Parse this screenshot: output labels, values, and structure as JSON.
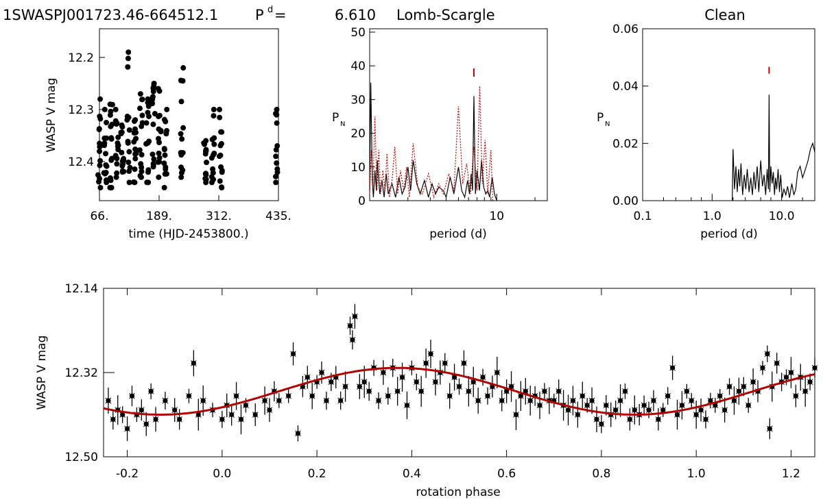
{
  "header": {
    "object": "1SWASPJ001723.46-664512.1",
    "period_symbol": "P",
    "period_sup": "d",
    "period_eq": "=",
    "period_value": "6.610",
    "method_left": "Lomb-Scargle",
    "method_right": "Clean"
  },
  "chart_data": [
    {
      "id": "lightcurve",
      "type": "scatter",
      "xlabel": "time (HJD-2453800.)",
      "ylabel": "WASP V mag",
      "xlim": [
        66,
        435
      ],
      "ylim": [
        12.145,
        12.475
      ],
      "y_inverted": true,
      "xticks": [
        "66.",
        "189.",
        "312.",
        "435."
      ],
      "yticks": [
        "12.2",
        "12.3",
        "12.4"
      ],
      "clusters": [
        {
          "x": 66,
          "y_min": 12.28,
          "y_max": 12.45
        },
        {
          "x": 78,
          "y_min": 12.3,
          "y_max": 12.44
        },
        {
          "x": 90,
          "y_min": 12.29,
          "y_max": 12.45
        },
        {
          "x": 102,
          "y_min": 12.3,
          "y_max": 12.43
        },
        {
          "x": 113,
          "y_min": 12.33,
          "y_max": 12.42
        },
        {
          "x": 126,
          "y_min": 12.19,
          "y_max": 12.44
        },
        {
          "x": 139,
          "y_min": 12.32,
          "y_max": 12.44
        },
        {
          "x": 152,
          "y_min": 12.27,
          "y_max": 12.43
        },
        {
          "x": 165,
          "y_min": 12.28,
          "y_max": 12.44
        },
        {
          "x": 178,
          "y_min": 12.25,
          "y_max": 12.41
        },
        {
          "x": 190,
          "y_min": 12.26,
          "y_max": 12.43
        },
        {
          "x": 202,
          "y_min": 12.3,
          "y_max": 12.45
        },
        {
          "x": 236,
          "y_min": 12.22,
          "y_max": 12.43
        },
        {
          "x": 284,
          "y_min": 12.36,
          "y_max": 12.44
        },
        {
          "x": 300,
          "y_min": 12.3,
          "y_max": 12.44
        },
        {
          "x": 316,
          "y_min": 12.3,
          "y_max": 12.45
        },
        {
          "x": 431,
          "y_min": 12.3,
          "y_max": 12.44
        }
      ]
    },
    {
      "id": "lomb-scargle",
      "type": "line",
      "xlabel": "period (d)",
      "ylabel": "P_N",
      "xscale": "log",
      "xlim": [
        1.0,
        25
      ],
      "ylim": [
        0,
        51
      ],
      "xticks": [
        "10"
      ],
      "yticks": [
        "0",
        "10",
        "20",
        "30",
        "40",
        "50"
      ],
      "series": [
        {
          "name": "periodogram",
          "color": "#000000",
          "style": "solid",
          "x": [
            1.0,
            1.02,
            1.05,
            1.07,
            1.1,
            1.13,
            1.15,
            1.2,
            1.25,
            1.3,
            1.35,
            1.4,
            1.5,
            1.6,
            1.7,
            1.8,
            1.9,
            2.0,
            2.1,
            2.2,
            2.35,
            2.5,
            2.7,
            2.9,
            3.1,
            3.3,
            3.5,
            3.8,
            4.0,
            4.3,
            4.6,
            5.0,
            5.3,
            5.6,
            5.9,
            6.1,
            6.3,
            6.45,
            6.61,
            6.8,
            7.0,
            7.3,
            7.6,
            7.9,
            8.2,
            8.5,
            8.8,
            9.2,
            9.6,
            10.0
          ],
          "y": [
            3,
            35,
            6,
            1,
            9,
            3,
            12,
            2,
            6,
            1,
            8,
            2,
            5,
            1,
            7,
            2,
            4,
            10,
            3,
            12,
            5,
            2,
            6,
            1,
            5,
            2,
            4,
            3,
            1,
            7,
            2,
            10,
            3,
            1,
            6,
            2,
            8,
            3,
            31,
            2,
            9,
            3,
            12,
            4,
            2,
            3,
            1,
            7,
            2,
            0
          ]
        },
        {
          "name": "window",
          "color": "#c00000",
          "style": "dotted",
          "x": [
            1.0,
            1.03,
            1.06,
            1.1,
            1.14,
            1.18,
            1.22,
            1.27,
            1.32,
            1.37,
            1.43,
            1.5,
            1.58,
            1.66,
            1.75,
            1.85,
            1.95,
            2.05,
            2.2,
            2.4,
            2.6,
            2.9,
            3.2,
            3.5,
            3.8,
            4.2,
            4.6,
            5.0,
            5.4,
            5.8,
            6.2,
            6.6,
            7.0,
            7.35,
            7.7,
            8.1,
            8.5,
            9.0,
            9.3
          ],
          "y": [
            2,
            15,
            4,
            25,
            3,
            15,
            2,
            9,
            3,
            14,
            1,
            6,
            16,
            2,
            9,
            3,
            10,
            1,
            17,
            4,
            2,
            8,
            1,
            5,
            2,
            8,
            3,
            28,
            5,
            11,
            2,
            16,
            3,
            34,
            5,
            18,
            2,
            15,
            0
          ]
        }
      ],
      "marker": {
        "x": 6.61,
        "y": 38,
        "color": "#c00000"
      }
    },
    {
      "id": "clean",
      "type": "line",
      "xlabel": "period (d)",
      "ylabel": "P_N",
      "xscale": "log",
      "xlim": [
        0.1,
        30
      ],
      "ylim": [
        0,
        0.06
      ],
      "xticks": [
        "0.1",
        "1.0",
        "10.0"
      ],
      "yticks": [
        "0.00",
        "0.02",
        "0.04",
        "0.06"
      ],
      "series": [
        {
          "name": "clean",
          "color": "#000000",
          "style": "solid",
          "x": [
            1.95,
            2.0,
            2.1,
            2.2,
            2.3,
            2.4,
            2.5,
            2.6,
            2.75,
            2.9,
            3.05,
            3.2,
            3.4,
            3.6,
            3.8,
            4.0,
            4.2,
            4.45,
            4.7,
            5.0,
            5.3,
            5.6,
            5.9,
            6.2,
            6.45,
            6.61,
            6.75,
            7.0,
            7.3,
            7.6,
            7.9,
            8.2,
            8.5,
            8.9,
            9.3,
            9.7,
            10.2,
            10.8,
            11.5,
            12.2,
            13.0,
            14.0,
            15.0,
            16.0,
            17.0,
            18.5,
            20.0,
            22.0,
            24.0,
            26.0,
            28.0,
            30.0
          ],
          "y": [
            0.0,
            0.018,
            0.004,
            0.012,
            0.003,
            0.011,
            0.005,
            0.013,
            0.002,
            0.009,
            0.004,
            0.011,
            0.003,
            0.008,
            0.002,
            0.01,
            0.004,
            0.012,
            0.003,
            0.014,
            0.005,
            0.009,
            0.002,
            0.011,
            0.004,
            0.037,
            0.003,
            0.012,
            0.006,
            0.01,
            0.002,
            0.008,
            0.004,
            0.011,
            0.003,
            0.009,
            0.001,
            0.004,
            0.002,
            0.005,
            0.001,
            0.006,
            0.002,
            0.004,
            0.01,
            0.012,
            0.008,
            0.011,
            0.014,
            0.018,
            0.02,
            0.017
          ]
        }
      ],
      "marker": {
        "x": 6.61,
        "y": 0.0455,
        "color": "#c00000"
      }
    },
    {
      "id": "phase-fold",
      "type": "scatter",
      "xlabel": "rotation phase",
      "ylabel": "WASP V mag",
      "xlim": [
        -0.25,
        1.25
      ],
      "ylim": [
        12.14,
        12.5
      ],
      "y_inverted": true,
      "xticks": [
        "-0.2",
        "0.0",
        "0.2",
        "0.4",
        "0.6",
        "0.8",
        "1.0",
        "1.2"
      ],
      "yticks": [
        "12.14",
        "12.32",
        "12.50"
      ],
      "fit": {
        "type": "sinusoid",
        "color": "#b00000",
        "mean": 12.36,
        "amplitude": 0.05,
        "phase_of_max_brightness": 0.37
      },
      "points": [
        [
          -0.24,
          12.38
        ],
        [
          -0.23,
          12.42
        ],
        [
          -0.22,
          12.4
        ],
        [
          -0.21,
          12.41
        ],
        [
          -0.2,
          12.44
        ],
        [
          -0.19,
          12.37
        ],
        [
          -0.18,
          12.41
        ],
        [
          -0.17,
          12.4
        ],
        [
          -0.16,
          12.43
        ],
        [
          -0.15,
          12.36
        ],
        [
          -0.14,
          12.42
        ],
        [
          -0.12,
          12.38
        ],
        [
          -0.1,
          12.4
        ],
        [
          -0.09,
          12.42
        ],
        [
          -0.07,
          12.37
        ],
        [
          -0.06,
          12.3
        ],
        [
          -0.05,
          12.41
        ],
        [
          -0.04,
          12.38
        ],
        [
          -0.02,
          12.4
        ],
        [
          0.0,
          12.42
        ],
        [
          0.01,
          12.39
        ],
        [
          0.02,
          12.41
        ],
        [
          0.03,
          12.37
        ],
        [
          0.04,
          12.42
        ],
        [
          0.05,
          12.39
        ],
        [
          0.07,
          12.41
        ],
        [
          0.09,
          12.38
        ],
        [
          0.1,
          12.4
        ],
        [
          0.11,
          12.36
        ],
        [
          0.12,
          12.38
        ],
        [
          0.14,
          12.37
        ],
        [
          0.15,
          12.28
        ],
        [
          0.16,
          12.45
        ],
        [
          0.17,
          12.35
        ],
        [
          0.18,
          12.33
        ],
        [
          0.19,
          12.37
        ],
        [
          0.2,
          12.34
        ],
        [
          0.21,
          12.32
        ],
        [
          0.22,
          12.38
        ],
        [
          0.23,
          12.34
        ],
        [
          0.24,
          12.33
        ],
        [
          0.25,
          12.38
        ],
        [
          0.26,
          12.35
        ],
        [
          0.27,
          12.22
        ],
        [
          0.275,
          12.25
        ],
        [
          0.28,
          12.2
        ],
        [
          0.29,
          12.35
        ],
        [
          0.3,
          12.34
        ],
        [
          0.31,
          12.36
        ],
        [
          0.32,
          12.31
        ],
        [
          0.33,
          12.38
        ],
        [
          0.34,
          12.32
        ],
        [
          0.35,
          12.37
        ],
        [
          0.36,
          12.31
        ],
        [
          0.37,
          12.36
        ],
        [
          0.38,
          12.33
        ],
        [
          0.39,
          12.39
        ],
        [
          0.4,
          12.31
        ],
        [
          0.41,
          12.34
        ],
        [
          0.42,
          12.36
        ],
        [
          0.43,
          12.3
        ],
        [
          0.44,
          12.28
        ],
        [
          0.45,
          12.34
        ],
        [
          0.46,
          12.32
        ],
        [
          0.47,
          12.3
        ],
        [
          0.48,
          12.37
        ],
        [
          0.49,
          12.33
        ],
        [
          0.5,
          12.35
        ],
        [
          0.51,
          12.3
        ],
        [
          0.52,
          12.36
        ],
        [
          0.53,
          12.34
        ],
        [
          0.54,
          12.38
        ],
        [
          0.55,
          12.33
        ],
        [
          0.56,
          12.37
        ],
        [
          0.57,
          12.35
        ],
        [
          0.58,
          12.32
        ],
        [
          0.59,
          12.38
        ],
        [
          0.6,
          12.36
        ],
        [
          0.61,
          12.35
        ],
        [
          0.62,
          12.41
        ],
        [
          0.63,
          12.37
        ],
        [
          0.64,
          12.36
        ],
        [
          0.65,
          12.38
        ],
        [
          0.66,
          12.37
        ],
        [
          0.67,
          12.39
        ],
        [
          0.68,
          12.36
        ],
        [
          0.69,
          12.38
        ],
        [
          0.7,
          12.38
        ],
        [
          0.71,
          12.36
        ],
        [
          0.72,
          12.39
        ],
        [
          0.73,
          12.4
        ],
        [
          0.74,
          12.38
        ],
        [
          0.75,
          12.41
        ],
        [
          0.76,
          12.37
        ],
        [
          0.77,
          12.39
        ],
        [
          0.78,
          12.38
        ],
        [
          0.79,
          12.42
        ],
        [
          0.8,
          12.43
        ],
        [
          0.81,
          12.39
        ],
        [
          0.82,
          12.41
        ],
        [
          0.83,
          12.4
        ],
        [
          0.84,
          12.38
        ],
        [
          0.85,
          12.36
        ],
        [
          0.86,
          12.42
        ],
        [
          0.87,
          12.4
        ],
        [
          0.88,
          12.41
        ],
        [
          0.89,
          12.39
        ],
        [
          0.9,
          12.4
        ],
        [
          0.91,
          12.38
        ],
        [
          0.92,
          12.42
        ],
        [
          0.93,
          12.4
        ],
        [
          0.94,
          12.37
        ],
        [
          0.95,
          12.31
        ],
        [
          0.96,
          12.41
        ],
        [
          0.97,
          12.39
        ],
        [
          0.98,
          12.36
        ],
        [
          0.99,
          12.38
        ],
        [
          1.0,
          12.41
        ],
        [
          1.01,
          12.4
        ],
        [
          1.02,
          12.42
        ],
        [
          1.03,
          12.38
        ],
        [
          1.04,
          12.39
        ],
        [
          1.05,
          12.37
        ],
        [
          1.06,
          12.4
        ],
        [
          1.07,
          12.35
        ],
        [
          1.08,
          12.38
        ],
        [
          1.09,
          12.36
        ],
        [
          1.1,
          12.35
        ],
        [
          1.11,
          12.39
        ],
        [
          1.12,
          12.34
        ],
        [
          1.13,
          12.36
        ],
        [
          1.14,
          12.31
        ],
        [
          1.15,
          12.28
        ],
        [
          1.155,
          12.44
        ],
        [
          1.16,
          12.35
        ],
        [
          1.17,
          12.3
        ],
        [
          1.18,
          12.34
        ],
        [
          1.19,
          12.33
        ],
        [
          1.2,
          12.32
        ],
        [
          1.21,
          12.37
        ],
        [
          1.22,
          12.33
        ],
        [
          1.23,
          12.36
        ],
        [
          1.24,
          12.34
        ],
        [
          1.25,
          12.31
        ]
      ]
    }
  ]
}
